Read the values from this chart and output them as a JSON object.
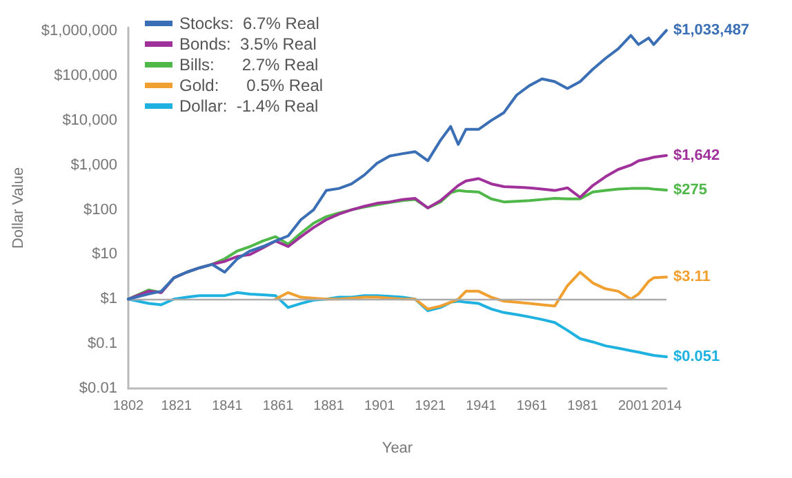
{
  "chart_data": {
    "type": "line",
    "xlabel": "Year",
    "ylabel": "Dollar Value",
    "x": [
      1802,
      1810,
      1815,
      1820,
      1825,
      1830,
      1835,
      1840,
      1845,
      1850,
      1855,
      1860,
      1865,
      1870,
      1875,
      1880,
      1885,
      1890,
      1895,
      1900,
      1905,
      1910,
      1915,
      1920,
      1925,
      1929,
      1932,
      1935,
      1940,
      1945,
      1950,
      1955,
      1960,
      1965,
      1970,
      1975,
      1980,
      1985,
      1990,
      1995,
      2000,
      2003,
      2007,
      2009,
      2014
    ],
    "xlim": [
      1802,
      2014
    ],
    "xticks": [
      1802,
      1821,
      1841,
      1861,
      1881,
      1901,
      1921,
      1941,
      1961,
      1981,
      2001,
      2014
    ],
    "log": true,
    "ylim": [
      0.01,
      1200000
    ],
    "yticks": [
      {
        "value": 0.01,
        "label": "$0.01"
      },
      {
        "value": 0.1,
        "label": "$0.1"
      },
      {
        "value": 1,
        "label": "$1"
      },
      {
        "value": 10,
        "label": "$10"
      },
      {
        "value": 100,
        "label": "$100"
      },
      {
        "value": 1000,
        "label": "$1,000"
      },
      {
        "value": 10000,
        "label": "$10,000"
      },
      {
        "value": 100000,
        "label": "$100,000"
      },
      {
        "value": 1000000,
        "label": "$1,000,000"
      }
    ],
    "grid": false,
    "legend": "top left",
    "marker": "none",
    "line_style": "solid",
    "ref_lines": [
      {
        "axis": "y",
        "value": 1,
        "color": "#aaaaaa"
      }
    ],
    "series": [
      {
        "name": "Stocks:  6.7% Real",
        "color": "#3a6fb5",
        "values": [
          1,
          1.3,
          1.5,
          3,
          4,
          5,
          6,
          4,
          8,
          12,
          15,
          20,
          26,
          60,
          100,
          270,
          300,
          380,
          600,
          1100,
          1600,
          1800,
          2000,
          1250,
          3600,
          7300,
          2900,
          6300,
          6300,
          10000,
          15000,
          37000,
          60000,
          85000,
          74000,
          52000,
          74000,
          140000,
          245000,
          400000,
          800000,
          500000,
          700000,
          500000,
          1033487
        ],
        "value_labels": [
          null,
          null,
          null,
          null,
          null,
          null,
          null,
          null,
          null,
          null,
          null,
          null,
          null,
          null,
          null,
          null,
          null,
          null,
          null,
          null,
          null,
          null,
          null,
          null,
          null,
          null,
          null,
          null,
          null,
          null,
          null,
          null,
          null,
          null,
          null,
          null,
          null,
          null,
          null,
          null,
          null,
          null,
          null,
          null,
          "$1,033,487"
        ]
      },
      {
        "name": "Bonds:  3.5% Real",
        "color": "#a0309a",
        "values": [
          1,
          1.5,
          1.4,
          3,
          4,
          5,
          6,
          7,
          9,
          10,
          14,
          20,
          15,
          25,
          40,
          60,
          80,
          100,
          120,
          140,
          150,
          170,
          180,
          110,
          160,
          250,
          350,
          440,
          500,
          380,
          330,
          320,
          310,
          290,
          270,
          310,
          190,
          350,
          550,
          800,
          1000,
          1250,
          1400,
          1500,
          1642
        ],
        "value_labels": [
          null,
          null,
          null,
          null,
          null,
          null,
          null,
          null,
          null,
          null,
          null,
          null,
          null,
          null,
          null,
          null,
          null,
          null,
          null,
          null,
          null,
          null,
          null,
          null,
          null,
          null,
          null,
          null,
          null,
          null,
          null,
          null,
          null,
          null,
          null,
          null,
          null,
          null,
          null,
          null,
          null,
          null,
          null,
          null,
          "$1,642"
        ]
      },
      {
        "name": "Bills:      2.7% Real",
        "color": "#4fb848",
        "values": [
          1,
          1.6,
          1.4,
          3,
          4,
          5,
          6,
          8,
          12,
          15,
          20,
          25,
          17,
          30,
          50,
          70,
          85,
          100,
          115,
          130,
          145,
          160,
          170,
          110,
          150,
          240,
          270,
          260,
          250,
          175,
          150,
          155,
          160,
          170,
          180,
          175,
          175,
          250,
          270,
          290,
          300,
          300,
          300,
          290,
          275
        ],
        "value_labels": [
          null,
          null,
          null,
          null,
          null,
          null,
          null,
          null,
          null,
          null,
          null,
          null,
          null,
          null,
          null,
          null,
          null,
          null,
          null,
          null,
          null,
          null,
          null,
          null,
          null,
          null,
          null,
          null,
          null,
          null,
          null,
          null,
          null,
          null,
          null,
          null,
          null,
          null,
          null,
          null,
          null,
          null,
          null,
          null,
          "$275"
        ]
      },
      {
        "name": "Gold:      0.5% Real",
        "color": "#f0a030",
        "values": [
          null,
          null,
          null,
          null,
          null,
          null,
          null,
          null,
          null,
          null,
          null,
          1.0,
          1.4,
          1.1,
          1.05,
          1.0,
          1.0,
          1.05,
          1.1,
          1.1,
          1.05,
          1.0,
          1.0,
          0.6,
          0.7,
          0.85,
          1.0,
          1.5,
          1.5,
          1.1,
          0.9,
          0.85,
          0.8,
          0.75,
          0.7,
          2,
          4,
          2.3,
          1.7,
          1.5,
          1.0,
          1.3,
          2.5,
          3,
          3.11
        ],
        "value_labels": [
          null,
          null,
          null,
          null,
          null,
          null,
          null,
          null,
          null,
          null,
          null,
          null,
          null,
          null,
          null,
          null,
          null,
          null,
          null,
          null,
          null,
          null,
          null,
          null,
          null,
          null,
          null,
          null,
          null,
          null,
          null,
          null,
          null,
          null,
          null,
          null,
          null,
          null,
          null,
          null,
          null,
          null,
          null,
          null,
          "$3.11"
        ]
      },
      {
        "name": "Dollar:  -1.4% Real",
        "color": "#1fb2e0",
        "values": [
          1,
          0.8,
          0.75,
          1.0,
          1.1,
          1.2,
          1.2,
          1.2,
          1.4,
          1.3,
          1.25,
          1.2,
          0.65,
          0.8,
          0.95,
          1.0,
          1.1,
          1.1,
          1.2,
          1.2,
          1.15,
          1.1,
          1.0,
          0.55,
          0.65,
          0.85,
          0.9,
          0.85,
          0.8,
          0.6,
          0.5,
          0.45,
          0.4,
          0.35,
          0.3,
          0.2,
          0.13,
          0.11,
          0.09,
          0.08,
          0.07,
          0.065,
          0.058,
          0.055,
          0.051
        ],
        "value_labels": [
          null,
          null,
          null,
          null,
          null,
          null,
          null,
          null,
          null,
          null,
          null,
          null,
          null,
          null,
          null,
          null,
          null,
          null,
          null,
          null,
          null,
          null,
          null,
          null,
          null,
          null,
          null,
          null,
          null,
          null,
          null,
          null,
          null,
          null,
          null,
          null,
          null,
          null,
          null,
          null,
          null,
          null,
          null,
          null,
          "$0.051"
        ]
      }
    ]
  }
}
